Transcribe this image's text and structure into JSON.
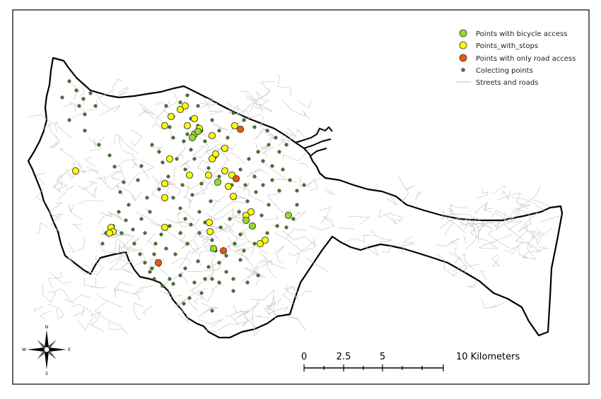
{
  "legend": {
    "bicycle": "Points with bicycle access",
    "stops": "Points_with_stops",
    "road_only": "Points with only road access",
    "collecting": "Colecting points",
    "streets": "Streets and roads"
  },
  "scale_bar": {
    "labels": [
      "0",
      "2.5",
      "5",
      "10 Kilometers"
    ]
  },
  "compass": {
    "n": "N",
    "s": "S",
    "e": "E",
    "w": "W"
  },
  "colors": {
    "bicycle": "#99dd22",
    "stops": "#ffff00",
    "road_only": "#ee5511",
    "collecting": "#447733",
    "boundary": "#000000",
    "streets": "#cccccc"
  }
}
